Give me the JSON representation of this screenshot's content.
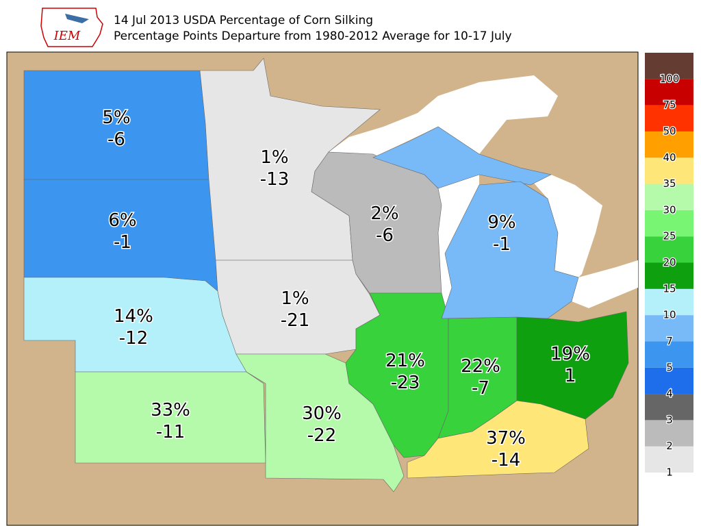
{
  "header": {
    "logo": "IEM",
    "title": "14 Jul 2013 USDA Percentage of Corn Silking",
    "subtitle": "Percentage Points Departure from 1980-2012 Average for 10-17 July"
  },
  "states": [
    {
      "percent": "5%",
      "departure": "-6"
    },
    {
      "percent": "6%",
      "departure": "-1"
    },
    {
      "percent": "14%",
      "departure": "-12"
    },
    {
      "percent": "33%",
      "departure": "-11"
    },
    {
      "percent": "1%",
      "departure": "-13"
    },
    {
      "percent": "1%",
      "departure": "-21"
    },
    {
      "percent": "30%",
      "departure": "-22"
    },
    {
      "percent": "2%",
      "departure": "-6"
    },
    {
      "percent": "21%",
      "departure": "-23"
    },
    {
      "percent": "22%",
      "departure": "-7"
    },
    {
      "percent": "19%",
      "departure": "1"
    },
    {
      "percent": "37%",
      "departure": "-14"
    },
    {
      "percent": "9%",
      "departure": "-1"
    }
  ],
  "legend": {
    "labels": [
      "1",
      "2",
      "3",
      "4",
      "5",
      "7",
      "10",
      "15",
      "20",
      "25",
      "30",
      "35",
      "40",
      "50",
      "75",
      "100"
    ],
    "colors": [
      "#e6e6e6",
      "#bbbbbb",
      "#666666",
      "#1e6eeb",
      "#3c96f0",
      "#78b9f7",
      "#b4f0fa",
      "#0fa00f",
      "#37d23c",
      "#78f573",
      "#b4faaa",
      "#ffe678",
      "#ffa000",
      "#ff3200",
      "#c80000",
      "#643c32"
    ]
  }
}
